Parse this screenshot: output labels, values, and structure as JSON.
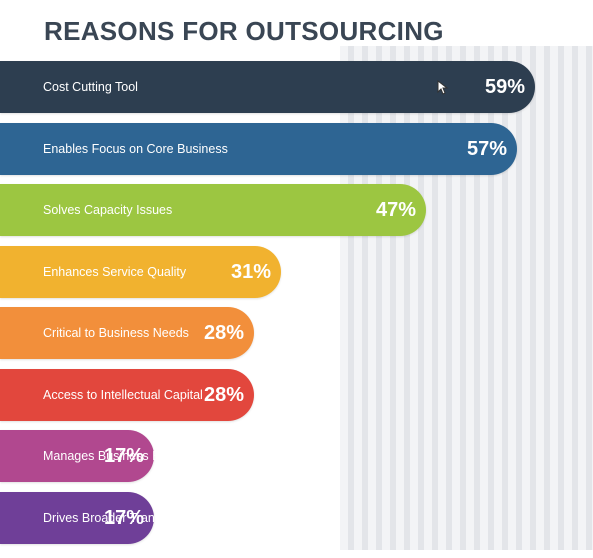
{
  "chart_data": {
    "type": "bar",
    "orientation": "horizontal",
    "title": "REASONS FOR OUTSOURCING",
    "categories": [
      "Cost Cutting Tool",
      "Enables Focus on Core Business",
      "Solves Capacity Issues",
      "Enhances Service Quality",
      "Critical to Business Needs",
      "Access to Intellectual Capital",
      "Manages Business Environment",
      "Drives Broader Transformational Change"
    ],
    "values": [
      59,
      57,
      47,
      31,
      28,
      28,
      17,
      17
    ],
    "value_labels": [
      "59%",
      "57%",
      "47%",
      "31%",
      "28%",
      "28%",
      "17%",
      "17%"
    ],
    "colors": [
      "#2d3e50",
      "#2e6593",
      "#9cc641",
      "#f1b22f",
      "#f28f3b",
      "#e2473d",
      "#b1488f",
      "#6f3f98"
    ],
    "xlabel": "",
    "ylabel": "",
    "grid": true,
    "legend": "none"
  }
}
